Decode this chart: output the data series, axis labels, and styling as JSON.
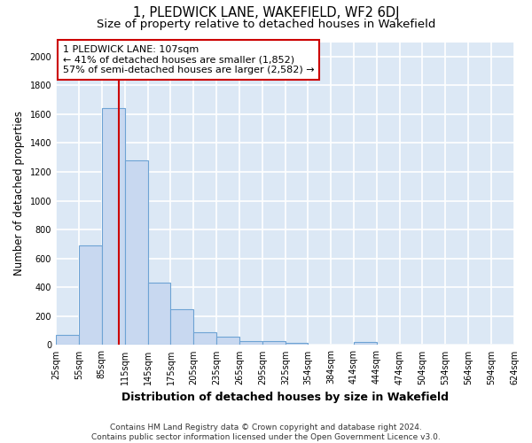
{
  "title": "1, PLEDWICK LANE, WAKEFIELD, WF2 6DJ",
  "subtitle": "Size of property relative to detached houses in Wakefield",
  "xlabel": "Distribution of detached houses by size in Wakefield",
  "ylabel": "Number of detached properties",
  "bar_color": "#c8d8f0",
  "bar_edge_color": "#6ea3d4",
  "background_color": "#dce8f5",
  "grid_color": "#ffffff",
  "bin_edges": [
    25,
    55,
    85,
    115,
    145,
    175,
    205,
    235,
    265,
    295,
    325,
    354,
    384,
    414,
    444,
    474,
    504,
    534,
    564,
    594,
    624
  ],
  "bar_heights": [
    70,
    690,
    1640,
    1280,
    430,
    250,
    90,
    55,
    30,
    25,
    15,
    0,
    0,
    20,
    0,
    0,
    0,
    0,
    0,
    0
  ],
  "property_size": 107,
  "vline_color": "#cc0000",
  "annotation_text": "1 PLEDWICK LANE: 107sqm\n← 41% of detached houses are smaller (1,852)\n57% of semi-detached houses are larger (2,582) →",
  "annotation_box_color": "#ffffff",
  "annotation_box_edge": "#cc0000",
  "ylim": [
    0,
    2100
  ],
  "yticks": [
    0,
    200,
    400,
    600,
    800,
    1000,
    1200,
    1400,
    1600,
    1800,
    2000
  ],
  "tick_labels": [
    "25sqm",
    "55sqm",
    "85sqm",
    "115sqm",
    "145sqm",
    "175sqm",
    "205sqm",
    "235sqm",
    "265sqm",
    "295sqm",
    "325sqm",
    "354sqm",
    "384sqm",
    "414sqm",
    "444sqm",
    "474sqm",
    "504sqm",
    "534sqm",
    "564sqm",
    "594sqm",
    "624sqm"
  ],
  "footnote": "Contains HM Land Registry data © Crown copyright and database right 2024.\nContains public sector information licensed under the Open Government Licence v3.0.",
  "title_fontsize": 10.5,
  "subtitle_fontsize": 9.5,
  "xlabel_fontsize": 9,
  "ylabel_fontsize": 8.5,
  "tick_fontsize": 7,
  "annotation_fontsize": 8,
  "footnote_fontsize": 6.5
}
